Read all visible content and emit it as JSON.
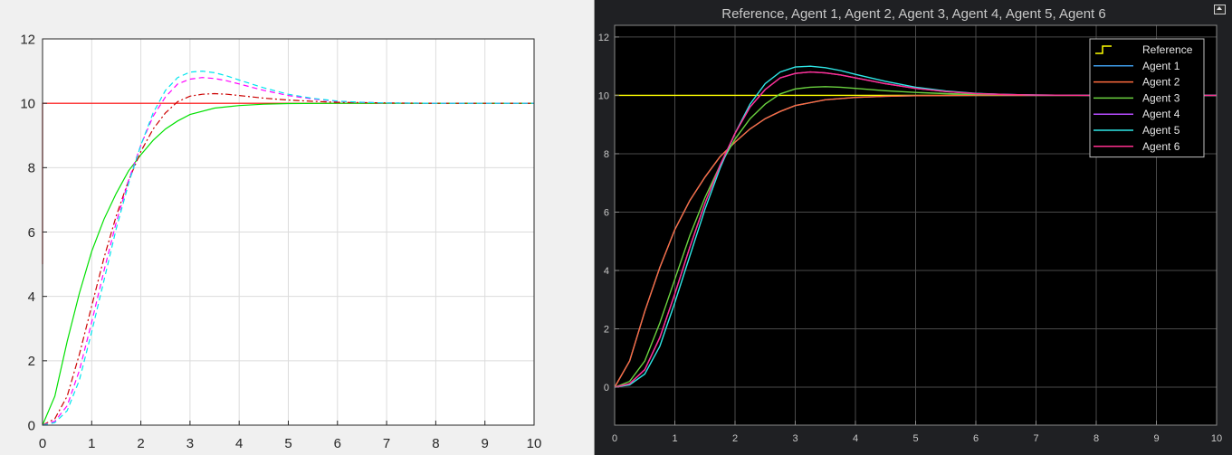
{
  "chart_data": [
    {
      "type": "line",
      "title": "",
      "xlabel": "",
      "ylabel": "",
      "xlim": [
        0,
        10
      ],
      "ylim": [
        0,
        12
      ],
      "xticks": [
        "0",
        "1",
        "2",
        "3",
        "4",
        "5",
        "6",
        "7",
        "8",
        "9",
        "10"
      ],
      "yticks": [
        "0",
        "2",
        "4",
        "6",
        "8",
        "10",
        "12"
      ],
      "grid": true,
      "background": "#ffffff",
      "series": [
        {
          "color": "#ff0000",
          "style": "solid",
          "x": [
            0,
            0.0,
            10
          ],
          "y": [
            5,
            10,
            10
          ]
        },
        {
          "color": "#00e000",
          "style": "solid",
          "x": [
            0,
            0.25,
            0.5,
            0.75,
            1,
            1.25,
            1.5,
            1.75,
            2,
            2.25,
            2.5,
            2.75,
            3,
            3.5,
            4,
            4.5,
            5,
            6,
            7,
            8,
            9,
            10
          ],
          "y": [
            0,
            0.9,
            2.6,
            4.1,
            5.4,
            6.4,
            7.2,
            7.9,
            8.4,
            8.85,
            9.2,
            9.45,
            9.65,
            9.85,
            9.93,
            9.97,
            9.99,
            10,
            10,
            10,
            10,
            10
          ]
        },
        {
          "color": "#cc0000",
          "style": "dashdot",
          "x": [
            0,
            0.25,
            0.5,
            0.75,
            1,
            1.25,
            1.5,
            1.75,
            2,
            2.25,
            2.5,
            2.75,
            3,
            3.25,
            3.5,
            3.75,
            4,
            4.5,
            5,
            5.5,
            6,
            7,
            8,
            9,
            10
          ],
          "y": [
            0,
            0.2,
            0.9,
            2.2,
            3.7,
            5.2,
            6.5,
            7.6,
            8.5,
            9.2,
            9.7,
            10.05,
            10.22,
            10.28,
            10.3,
            10.28,
            10.24,
            10.16,
            10.1,
            10.06,
            10.03,
            10.01,
            10,
            10,
            10
          ]
        },
        {
          "color": "#ff00ff",
          "style": "dashed",
          "x": [
            0,
            0.25,
            0.5,
            0.75,
            1,
            1.25,
            1.5,
            1.75,
            2,
            2.25,
            2.5,
            2.75,
            3,
            3.25,
            3.5,
            3.75,
            4,
            4.5,
            5,
            5.5,
            6,
            6.5,
            7,
            8,
            9,
            10
          ],
          "y": [
            0,
            0.12,
            0.6,
            1.7,
            3.2,
            4.8,
            6.3,
            7.6,
            8.7,
            9.6,
            10.2,
            10.6,
            10.75,
            10.8,
            10.77,
            10.7,
            10.6,
            10.4,
            10.24,
            10.13,
            10.06,
            10.03,
            10.01,
            10,
            10,
            10
          ]
        },
        {
          "color": "#00e5ee",
          "style": "dashed",
          "x": [
            0,
            0.25,
            0.5,
            0.75,
            1,
            1.25,
            1.5,
            1.75,
            2,
            2.25,
            2.5,
            2.75,
            3,
            3.25,
            3.5,
            3.75,
            4,
            4.5,
            5,
            5.5,
            6,
            6.5,
            7,
            8,
            9,
            10
          ],
          "y": [
            0,
            0.08,
            0.45,
            1.4,
            2.9,
            4.5,
            6.1,
            7.5,
            8.7,
            9.7,
            10.4,
            10.8,
            10.97,
            11.0,
            10.95,
            10.85,
            10.72,
            10.48,
            10.28,
            10.15,
            10.07,
            10.03,
            10.01,
            10,
            10,
            10
          ]
        }
      ]
    },
    {
      "type": "line",
      "title": "Reference, Agent 1, Agent 2, Agent 3, Agent 4, Agent 5, Agent 6",
      "xlabel": "",
      "ylabel": "",
      "xlim": [
        0,
        10
      ],
      "ylim": [
        -1.3,
        12.4
      ],
      "xticks": [
        "0",
        "1",
        "2",
        "3",
        "4",
        "5",
        "6",
        "7",
        "8",
        "9",
        "10"
      ],
      "yticks": [
        "0",
        "2",
        "4",
        "6",
        "8",
        "10",
        "12"
      ],
      "grid": true,
      "background": "#000000",
      "legend_position": "top-right",
      "series": [
        {
          "name": "Reference",
          "color": "#ffff00",
          "x": [
            0,
            10
          ],
          "y": [
            10,
            10
          ]
        },
        {
          "name": "Agent 1",
          "color": "#3d9be9",
          "x": [
            0,
            0.25,
            0.5,
            0.75,
            1,
            1.25,
            1.5,
            1.75,
            2,
            2.25,
            2.5,
            2.75,
            3,
            3.5,
            4,
            4.5,
            5,
            6,
            7,
            8,
            9,
            10
          ],
          "y": [
            0,
            0.9,
            2.6,
            4.1,
            5.4,
            6.4,
            7.2,
            7.9,
            8.4,
            8.85,
            9.2,
            9.45,
            9.65,
            9.85,
            9.93,
            9.97,
            9.99,
            10,
            10,
            10,
            10,
            10
          ]
        },
        {
          "name": "Agent 2",
          "color": "#ff6a3d",
          "x": [
            0,
            0.25,
            0.5,
            0.75,
            1,
            1.25,
            1.5,
            1.75,
            2,
            2.25,
            2.5,
            2.75,
            3,
            3.5,
            4,
            4.5,
            5,
            6,
            7,
            8,
            9,
            10
          ],
          "y": [
            0,
            0.9,
            2.6,
            4.1,
            5.4,
            6.4,
            7.2,
            7.9,
            8.4,
            8.85,
            9.2,
            9.45,
            9.65,
            9.85,
            9.93,
            9.97,
            9.99,
            10,
            10,
            10,
            10,
            10
          ]
        },
        {
          "name": "Agent 3",
          "color": "#6ad23f",
          "x": [
            0,
            0.25,
            0.5,
            0.75,
            1,
            1.25,
            1.5,
            1.75,
            2,
            2.25,
            2.5,
            2.75,
            3,
            3.25,
            3.5,
            3.75,
            4,
            4.5,
            5,
            5.5,
            6,
            7,
            8,
            9,
            10
          ],
          "y": [
            0,
            0.2,
            0.9,
            2.2,
            3.7,
            5.2,
            6.5,
            7.6,
            8.5,
            9.2,
            9.7,
            10.05,
            10.22,
            10.28,
            10.3,
            10.28,
            10.24,
            10.16,
            10.1,
            10.06,
            10.03,
            10.01,
            10,
            10,
            10
          ]
        },
        {
          "name": "Agent 4",
          "color": "#b64cff",
          "x": [
            0,
            0.25,
            0.5,
            0.75,
            1,
            1.25,
            1.5,
            1.75,
            2,
            2.25,
            2.5,
            2.75,
            3,
            3.25,
            3.5,
            3.75,
            4,
            4.5,
            5,
            5.5,
            6,
            6.5,
            7,
            8,
            9,
            10
          ],
          "y": [
            0,
            0.12,
            0.6,
            1.7,
            3.2,
            4.8,
            6.3,
            7.6,
            8.7,
            9.6,
            10.2,
            10.6,
            10.75,
            10.8,
            10.77,
            10.7,
            10.6,
            10.4,
            10.24,
            10.13,
            10.06,
            10.03,
            10.01,
            10,
            10,
            10
          ]
        },
        {
          "name": "Agent 5",
          "color": "#2fe8e8",
          "x": [
            0,
            0.25,
            0.5,
            0.75,
            1,
            1.25,
            1.5,
            1.75,
            2,
            2.25,
            2.5,
            2.75,
            3,
            3.25,
            3.5,
            3.75,
            4,
            4.5,
            5,
            5.5,
            6,
            6.5,
            7,
            8,
            9,
            10
          ],
          "y": [
            0,
            0.08,
            0.45,
            1.4,
            2.9,
            4.5,
            6.1,
            7.5,
            8.7,
            9.7,
            10.4,
            10.8,
            10.97,
            11.0,
            10.95,
            10.85,
            10.72,
            10.48,
            10.28,
            10.15,
            10.07,
            10.03,
            10.01,
            10,
            10,
            10
          ]
        },
        {
          "name": "Agent 6",
          "color": "#ff2f8e",
          "x": [
            0,
            0.25,
            0.5,
            0.75,
            1,
            1.25,
            1.5,
            1.75,
            2,
            2.25,
            2.5,
            2.75,
            3,
            3.25,
            3.5,
            3.75,
            4,
            4.5,
            5,
            5.5,
            6,
            6.5,
            7,
            8,
            9,
            10
          ],
          "y": [
            0,
            0.12,
            0.6,
            1.7,
            3.2,
            4.8,
            6.3,
            7.6,
            8.7,
            9.6,
            10.2,
            10.6,
            10.75,
            10.8,
            10.77,
            10.7,
            10.6,
            10.4,
            10.24,
            10.13,
            10.06,
            10.03,
            10.01,
            10,
            10,
            10
          ]
        }
      ]
    }
  ]
}
